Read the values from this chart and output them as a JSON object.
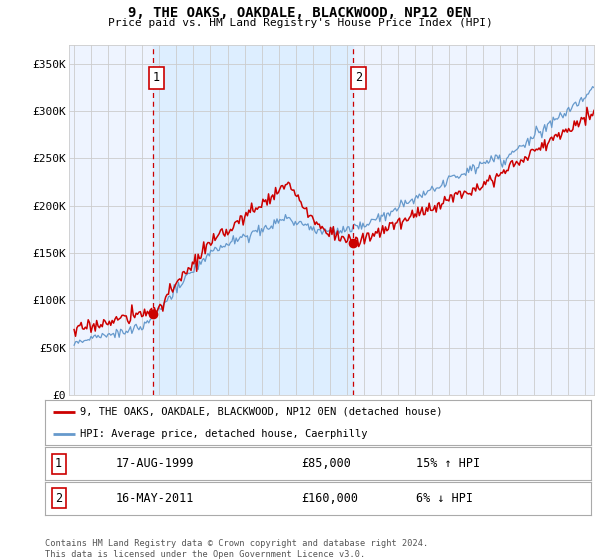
{
  "title": "9, THE OAKS, OAKDALE, BLACKWOOD, NP12 0EN",
  "subtitle": "Price paid vs. HM Land Registry's House Price Index (HPI)",
  "ylabel_ticks": [
    "£0",
    "£50K",
    "£100K",
    "£150K",
    "£200K",
    "£250K",
    "£300K",
    "£350K"
  ],
  "ytick_values": [
    0,
    50000,
    100000,
    150000,
    200000,
    250000,
    300000,
    350000
  ],
  "ylim": [
    0,
    370000
  ],
  "xlim_start": 1994.7,
  "xlim_end": 2025.5,
  "marker1_year": 1999.625,
  "marker1_value": 85000,
  "marker2_year": 2011.37,
  "marker2_value": 160000,
  "legend_line1": "9, THE OAKS, OAKDALE, BLACKWOOD, NP12 0EN (detached house)",
  "legend_line2": "HPI: Average price, detached house, Caerphilly",
  "footer": "Contains HM Land Registry data © Crown copyright and database right 2024.\nThis data is licensed under the Open Government Licence v3.0.",
  "red_color": "#cc0000",
  "blue_color": "#6699cc",
  "shade_color": "#ddeeff",
  "grid_color": "#cccccc",
  "bg_color": "#eef4ff",
  "plot_bg": "#ffffff"
}
